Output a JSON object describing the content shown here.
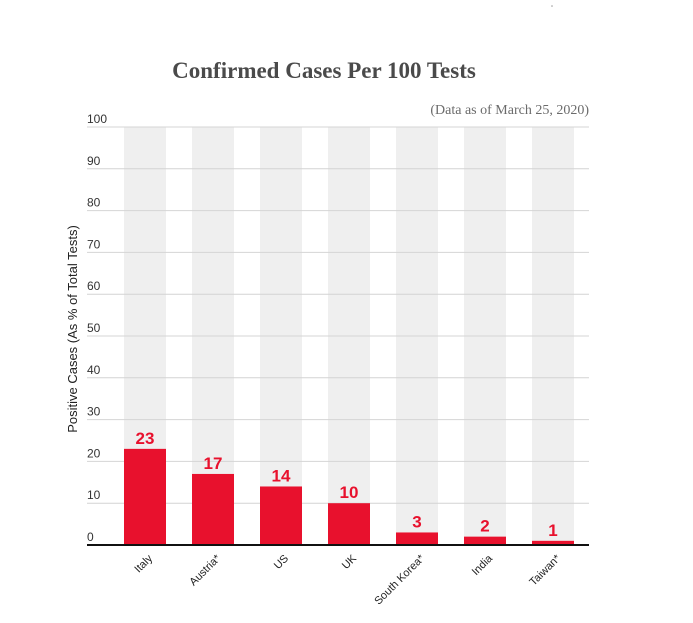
{
  "chart_data": {
    "type": "bar",
    "title": "Confirmed Cases Per 100 Tests",
    "subtitle": "(Data as of March 25, 2020)",
    "xlabel": "",
    "ylabel": "Positive Cases (As % of Total Tests)",
    "categories": [
      "Italy",
      "Austria*",
      "US",
      "UK",
      "South Korea*",
      "India",
      "Taiwan*"
    ],
    "values": [
      23,
      17,
      14,
      10,
      3,
      2,
      1
    ],
    "data_labels": [
      "23",
      "17",
      "14",
      "10",
      "3",
      "2",
      "1"
    ],
    "ylim": [
      0,
      100
    ],
    "yticks": [
      0,
      10,
      20,
      30,
      40,
      50,
      60,
      70,
      80,
      90,
      100
    ],
    "grid": true,
    "colors": {
      "bar": "#e8112d",
      "label": "#e8112d",
      "column_band": "#efefef",
      "gridline": "#d4d4d4",
      "axis": "#111111"
    }
  }
}
